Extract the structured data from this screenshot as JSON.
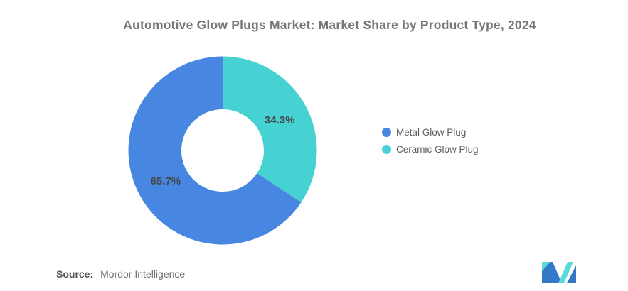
{
  "chart_data": {
    "type": "pie",
    "subtype": "donut",
    "title": "Automotive Glow Plugs Market: Market Share by Product Type, 2024",
    "unit": "%",
    "legend_position": "right",
    "start_angle": "top",
    "direction_note": "teal slice starts at 12 o'clock going clockwise",
    "slices": [
      {
        "name": "Metal Glow Plug",
        "value": 65.7,
        "label": "65.7%",
        "color": "#4787E1"
      },
      {
        "name": "Ceramic Glow Plug",
        "value": 34.3,
        "label": "34.3%",
        "color": "#46D1D3"
      }
    ],
    "label_color": "#45484C"
  },
  "footer": {
    "source_label": "Source:",
    "source_value": "Mordor Intelligence"
  },
  "logo": {
    "name": "Mordor Intelligence",
    "blue": "#3379C6",
    "teal": "#5CD9DB"
  },
  "colors": {
    "background": "#FFFFFF",
    "title_text": "#76777A",
    "legend_text": "#5B5D60"
  }
}
